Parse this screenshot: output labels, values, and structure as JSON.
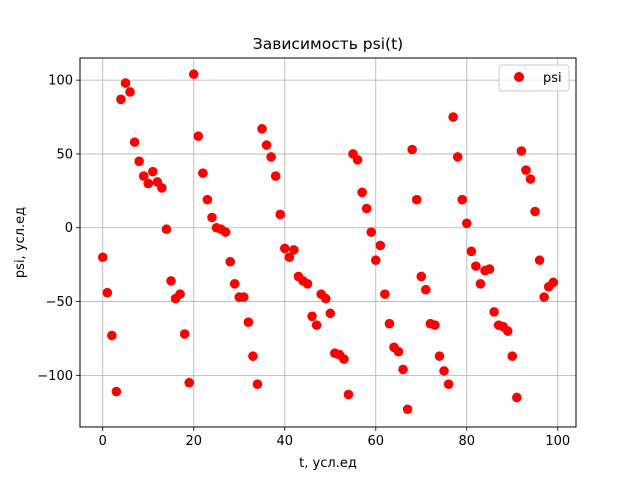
{
  "chart_data": {
    "type": "scatter",
    "title": "Зависимость psi(t)",
    "xlabel": "t, усл.ед",
    "ylabel": "psi, усл.ед",
    "xlim": [
      -5,
      104
    ],
    "ylim": [
      -135,
      115
    ],
    "xticks": [
      0,
      20,
      40,
      60,
      80,
      100
    ],
    "yticks": [
      -100,
      -50,
      0,
      50,
      100
    ],
    "grid": true,
    "legend_position": "top-right",
    "colors": {
      "marker": "#ff0000",
      "grid": "#b0b0b0"
    },
    "series": [
      {
        "name": "psi",
        "x": [
          0,
          1,
          2,
          3,
          4,
          5,
          6,
          7,
          8,
          9,
          10,
          11,
          12,
          13,
          14,
          15,
          16,
          17,
          18,
          19,
          20,
          21,
          22,
          23,
          24,
          25,
          26,
          27,
          28,
          29,
          30,
          31,
          32,
          33,
          34,
          35,
          36,
          37,
          38,
          39,
          40,
          41,
          42,
          43,
          44,
          45,
          46,
          47,
          48,
          49,
          50,
          51,
          52,
          53,
          54,
          55,
          56,
          57,
          58,
          59,
          60,
          61,
          62,
          63,
          64,
          65,
          66,
          67,
          68,
          69,
          70,
          71,
          72,
          73,
          74,
          75,
          76,
          77,
          78,
          79,
          80,
          81,
          82,
          83,
          84,
          85,
          86,
          87,
          88,
          89,
          90,
          91,
          92,
          93,
          94,
          95,
          96,
          97,
          98,
          99
        ],
        "y": [
          -20,
          -44,
          -73,
          -111,
          87,
          98,
          92,
          58,
          45,
          35,
          30,
          38,
          31,
          27,
          -1,
          -36,
          -48,
          -45,
          -72,
          -105,
          104,
          62,
          37,
          19,
          7,
          0,
          -1,
          -3,
          -23,
          -38,
          -47,
          -47,
          -64,
          -87,
          -106,
          67,
          56,
          48,
          35,
          9,
          -14,
          -20,
          -15,
          -33,
          -36,
          -38,
          -60,
          -66,
          -45,
          -48,
          -58,
          -85,
          -86,
          -89,
          -113,
          50,
          46,
          24,
          13,
          -3,
          -22,
          -12,
          -45,
          -65,
          -81,
          -84,
          -96,
          -123,
          53,
          19,
          -33,
          -42,
          -65,
          -66,
          -87,
          -97,
          -106,
          75,
          48,
          19,
          3,
          -16,
          -26,
          -38,
          -29,
          -28,
          -57,
          -66,
          -67,
          -70,
          -87,
          -115,
          52,
          39,
          33,
          11,
          -22,
          -47,
          -40,
          -37
        ]
      }
    ]
  }
}
